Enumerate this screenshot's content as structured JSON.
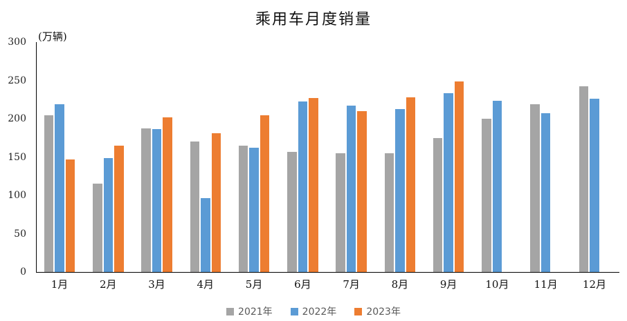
{
  "title": "乘用车月度销量",
  "unit_label": "(万辆)",
  "colors": {
    "series_2021": "#A5A5A5",
    "series_2022": "#5B9BD5",
    "series_2023": "#ED7D31",
    "axis": "#000000",
    "legend_text": "#595959"
  },
  "chart_data": {
    "type": "bar",
    "title": "乘用车月度销量",
    "unit": "万辆",
    "xlabel": "",
    "ylabel": "(万辆)",
    "ylim": [
      0,
      300
    ],
    "yticks": [
      0,
      50,
      100,
      150,
      200,
      250,
      300
    ],
    "grid": false,
    "legend_position": "bottom",
    "categories": [
      "1月",
      "2月",
      "3月",
      "4月",
      "5月",
      "6月",
      "7月",
      "8月",
      "9月",
      "10月",
      "11月",
      "12月"
    ],
    "series": [
      {
        "name": "2021年",
        "color": "#A5A5A5",
        "values": [
          204.5,
          115.5,
          187.4,
          170.4,
          164.6,
          156.9,
          155.1,
          155.2,
          175.1,
          200.4,
          219.2,
          242.2
        ]
      },
      {
        "name": "2022年",
        "color": "#5B9BD5",
        "values": [
          218.6,
          148.7,
          186.4,
          96.5,
          162.3,
          222.2,
          217.4,
          212.5,
          233.2,
          223.0,
          207.5,
          226.3
        ]
      },
      {
        "name": "2023年",
        "color": "#ED7D31",
        "values": [
          146.9,
          165.3,
          201.7,
          181.1,
          204.5,
          226.8,
          210.0,
          227.5,
          248.9,
          null,
          null,
          null
        ]
      }
    ]
  }
}
